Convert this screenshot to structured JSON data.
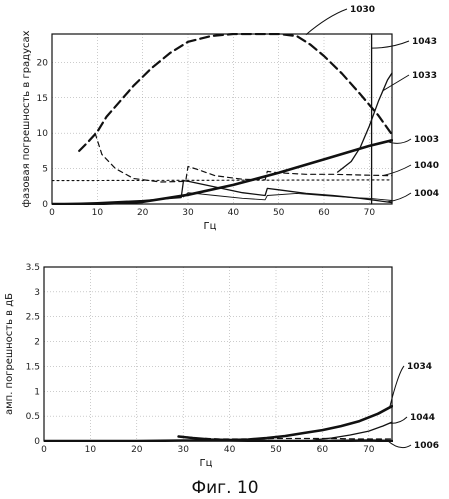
{
  "caption": "Фиг. 10",
  "chart_data": [
    {
      "type": "line",
      "xlabel": "Гц",
      "ylabel": "фазовая погрешность в градусах",
      "xlim": [
        0,
        75
      ],
      "ylim": [
        0,
        24
      ],
      "xticks": [
        "0",
        "10",
        "20",
        "30",
        "40",
        "50",
        "60",
        "70"
      ],
      "yticks": [
        "0",
        "5",
        "10",
        "15",
        "20"
      ],
      "grid": true,
      "series": [
        {
          "name": "1030",
          "style": "dashed-thick",
          "points": [
            [
              6,
              7.5
            ],
            [
              8,
              8.8
            ],
            [
              10,
              10.2
            ],
            [
              12,
              12.3
            ],
            [
              15,
              14.5
            ],
            [
              18,
              16.7
            ],
            [
              22,
              19.2
            ],
            [
              26,
              21.3
            ],
            [
              30,
              22.9
            ],
            [
              35,
              23.7
            ],
            [
              40,
              24
            ],
            [
              45,
              24
            ],
            [
              50,
              24
            ],
            [
              54,
              23.7
            ],
            [
              57,
              22.5
            ],
            [
              60,
              20.9
            ],
            [
              64,
              18.4
            ],
            [
              68,
              15.5
            ],
            [
              72,
              12.5
            ],
            [
              75,
              9.8
            ]
          ]
        },
        {
          "name": "1043",
          "style": "solid",
          "points": [
            [
              70.5,
              0
            ],
            [
              70.5,
              24
            ]
          ]
        },
        {
          "name": "1033",
          "style": "solid",
          "points": [
            [
              63,
              4.5
            ],
            [
              66,
              6
            ],
            [
              68,
              8
            ],
            [
              70,
              11
            ],
            [
              72,
              14.5
            ],
            [
              74,
              17.5
            ],
            [
              75,
              18.5
            ]
          ]
        },
        {
          "name": "1003",
          "style": "solid-thick",
          "points": [
            [
              0,
              0
            ],
            [
              10,
              0
            ],
            [
              20,
              0.3
            ],
            [
              30,
              1.3
            ],
            [
              40,
              2.7
            ],
            [
              50,
              4.4
            ],
            [
              60,
              6.3
            ],
            [
              70,
              8.2
            ],
            [
              75,
              9
            ]
          ]
        },
        {
          "name": "1040",
          "style": "dashed",
          "points": [
            [
              9.5,
              10
            ],
            [
              11,
              7
            ],
            [
              14,
              5
            ],
            [
              18,
              3.6
            ],
            [
              24,
              3.1
            ],
            [
              29.5,
              3.2
            ],
            [
              30,
              5.3
            ],
            [
              32,
              4.9
            ],
            [
              36,
              4
            ],
            [
              42,
              3.5
            ],
            [
              47,
              3.4
            ],
            [
              47.5,
              4.6
            ],
            [
              50,
              4.4
            ],
            [
              56,
              4.2
            ],
            [
              62,
              4.2
            ],
            [
              68,
              4.1
            ],
            [
              75,
              4.0
            ]
          ]
        },
        {
          "name": "1004",
          "style": "solid",
          "points": [
            [
              0,
              0
            ],
            [
              10,
              0.2
            ],
            [
              20,
              0.5
            ],
            [
              28.5,
              0.9
            ],
            [
              29,
              3.3
            ],
            [
              30,
              3.2
            ],
            [
              36,
              2.4
            ],
            [
              42,
              1.6
            ],
            [
              47,
              1.2
            ],
            [
              47.5,
              2.2
            ],
            [
              50,
              2.0
            ],
            [
              56,
              1.5
            ],
            [
              62,
              1.2
            ],
            [
              68,
              0.8
            ],
            [
              75,
              0.2
            ]
          ]
        },
        {
          "name": "",
          "style": "dotted",
          "points": [
            [
              0,
              3.3
            ],
            [
              75,
              3.4
            ]
          ]
        },
        {
          "name": "",
          "style": "solid-thin",
          "points": [
            [
              29,
              1.0
            ],
            [
              30,
              1.6
            ],
            [
              36,
              1.2
            ],
            [
              42,
              0.8
            ],
            [
              47,
              0.6
            ],
            [
              47.5,
              1.2
            ],
            [
              54,
              1.5
            ],
            [
              60,
              1.2
            ],
            [
              66,
              0.9
            ],
            [
              70,
              0.8
            ],
            [
              75,
              0.5
            ]
          ]
        }
      ]
    },
    {
      "type": "line",
      "xlabel": "Гц",
      "ylabel": "амп. погрешность в дБ",
      "xlim": [
        0,
        75
      ],
      "ylim": [
        0,
        3.5
      ],
      "xticks": [
        "0",
        "10",
        "20",
        "30",
        "40",
        "50",
        "60",
        "70"
      ],
      "yticks": [
        "0",
        "0.5",
        "1",
        "1.5",
        "2",
        "2.5",
        "3",
        "3.5"
      ],
      "grid": true,
      "series": [
        {
          "name": "1034",
          "style": "solid-thick",
          "points": [
            [
              29,
              0.09
            ],
            [
              32,
              0.06
            ],
            [
              36,
              0.03
            ],
            [
              40,
              0.02
            ],
            [
              44,
              0.03
            ],
            [
              48,
              0.06
            ],
            [
              52,
              0.1
            ],
            [
              56,
              0.16
            ],
            [
              60,
              0.22
            ],
            [
              64,
              0.3
            ],
            [
              68,
              0.4
            ],
            [
              72,
              0.55
            ],
            [
              75,
              0.7
            ]
          ]
        },
        {
          "name": "1044",
          "style": "solid",
          "points": [
            [
              58,
              0.02
            ],
            [
              62,
              0.06
            ],
            [
              66,
              0.12
            ],
            [
              70,
              0.2
            ],
            [
              73,
              0.3
            ],
            [
              75,
              0.38
            ]
          ]
        },
        {
          "name": "1006",
          "style": "solid-thick",
          "points": [
            [
              0,
              0
            ],
            [
              20,
              0
            ],
            [
              30,
              0.01
            ],
            [
              40,
              0.01
            ],
            [
              50,
              0
            ],
            [
              60,
              0
            ],
            [
              70,
              0.01
            ],
            [
              75,
              0
            ]
          ]
        },
        {
          "name": "",
          "style": "dashed",
          "points": [
            [
              29,
              0.1
            ],
            [
              33,
              0.06
            ],
            [
              38,
              0.04
            ],
            [
              44,
              0.04
            ],
            [
              50,
              0.05
            ],
            [
              56,
              0.05
            ],
            [
              62,
              0.05
            ],
            [
              68,
              0.04
            ],
            [
              75,
              0.04
            ]
          ]
        }
      ]
    }
  ]
}
